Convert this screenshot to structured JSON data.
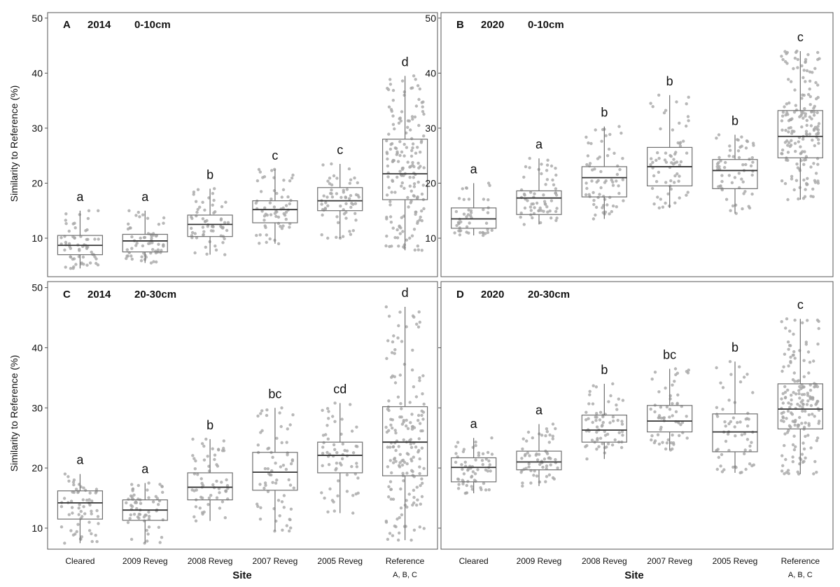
{
  "figure": {
    "ylabel": "Similarity to Reference (%)",
    "xlabel": "Site",
    "reference_note": "A, B, C"
  },
  "colors": {
    "axis": "#555555",
    "box": "#6f6f6f",
    "point": "#a6a6a6",
    "text": "#111111"
  },
  "chart_data": [
    {
      "type": "box",
      "panel": "A",
      "year": "2014",
      "depth": "0-10cm",
      "ylim": [
        3,
        51
      ],
      "yticks": [
        10,
        20,
        30,
        40,
        50
      ],
      "categories": [
        "Cleared",
        "2009 Reveg",
        "2008 Reveg",
        "2007 Reveg",
        "2005 Reveg",
        "Reference"
      ],
      "boxes": [
        {
          "min": 4.5,
          "q1": 7.0,
          "median": 8.7,
          "q3": 10.5,
          "max": 15.0,
          "n": 60,
          "letter": "a"
        },
        {
          "min": 5.5,
          "q1": 7.5,
          "median": 9.5,
          "q3": 10.7,
          "max": 15.0,
          "n": 60,
          "letter": "a"
        },
        {
          "min": 7.0,
          "q1": 10.3,
          "median": 12.5,
          "q3": 14.2,
          "max": 19.0,
          "n": 60,
          "letter": "b"
        },
        {
          "min": 9.0,
          "q1": 12.8,
          "median": 15.2,
          "q3": 16.8,
          "max": 22.5,
          "n": 60,
          "letter": "c"
        },
        {
          "min": 10.0,
          "q1": 15.0,
          "median": 16.8,
          "q3": 19.2,
          "max": 23.5,
          "n": 60,
          "letter": "c"
        },
        {
          "min": 7.8,
          "q1": 17.0,
          "median": 21.7,
          "q3": 28.0,
          "max": 39.5,
          "n": 170,
          "letter": "d"
        }
      ]
    },
    {
      "type": "box",
      "panel": "B",
      "year": "2020",
      "depth": "0-10cm",
      "ylim": [
        3,
        51
      ],
      "yticks": [
        10,
        20,
        30,
        40,
        50
      ],
      "categories": [
        "Cleared",
        "2009 Reveg",
        "2008 Reveg",
        "2007 Reveg",
        "2005 Reveg",
        "Reference"
      ],
      "boxes": [
        {
          "min": 10.5,
          "q1": 11.8,
          "median": 13.5,
          "q3": 15.5,
          "max": 20.0,
          "n": 45,
          "letter": "a"
        },
        {
          "min": 12.5,
          "q1": 14.3,
          "median": 17.3,
          "q3": 18.6,
          "max": 24.5,
          "n": 60,
          "letter": "a"
        },
        {
          "min": 13.5,
          "q1": 17.5,
          "median": 21.0,
          "q3": 23.0,
          "max": 30.3,
          "n": 65,
          "letter": "b"
        },
        {
          "min": 15.5,
          "q1": 19.5,
          "median": 23.0,
          "q3": 26.5,
          "max": 36.0,
          "n": 65,
          "letter": "b"
        },
        {
          "min": 14.5,
          "q1": 19.0,
          "median": 22.3,
          "q3": 24.3,
          "max": 28.8,
          "n": 60,
          "letter": "b"
        },
        {
          "min": 17.0,
          "q1": 24.6,
          "median": 28.5,
          "q3": 33.2,
          "max": 44.0,
          "n": 170,
          "letter": "c"
        }
      ]
    },
    {
      "type": "box",
      "panel": "C",
      "year": "2014",
      "depth": "20-30cm",
      "ylim": [
        6.5,
        51
      ],
      "yticks": [
        10,
        20,
        30,
        40,
        50
      ],
      "categories": [
        "Cleared",
        "2009 Reveg",
        "2008 Reveg",
        "2007 Reveg",
        "2005 Reveg",
        "Reference"
      ],
      "boxes": [
        {
          "min": 7.5,
          "q1": 11.5,
          "median": 14.2,
          "q3": 16.2,
          "max": 19.0,
          "n": 60,
          "letter": "a"
        },
        {
          "min": 7.5,
          "q1": 11.3,
          "median": 13.0,
          "q3": 14.7,
          "max": 17.5,
          "n": 60,
          "letter": "a"
        },
        {
          "min": 11.2,
          "q1": 14.7,
          "median": 16.8,
          "q3": 19.2,
          "max": 24.8,
          "n": 60,
          "letter": "b"
        },
        {
          "min": 9.5,
          "q1": 16.3,
          "median": 19.3,
          "q3": 22.6,
          "max": 30.0,
          "n": 65,
          "letter": "bc"
        },
        {
          "min": 12.5,
          "q1": 19.2,
          "median": 22.1,
          "q3": 24.3,
          "max": 30.8,
          "n": 60,
          "letter": "cd"
        },
        {
          "min": 8.0,
          "q1": 18.7,
          "median": 24.3,
          "q3": 30.2,
          "max": 46.8,
          "n": 170,
          "letter": "d"
        }
      ]
    },
    {
      "type": "box",
      "panel": "D",
      "year": "2020",
      "depth": "20-30cm",
      "ylim": [
        6.5,
        51
      ],
      "yticks": [
        10,
        20,
        30,
        40,
        50
      ],
      "show_tick_labels": false,
      "categories": [
        "Cleared",
        "2009 Reveg",
        "2008 Reveg",
        "2007 Reveg",
        "2005 Reveg",
        "Reference"
      ],
      "boxes": [
        {
          "min": 15.8,
          "q1": 17.7,
          "median": 20.1,
          "q3": 21.7,
          "max": 25.0,
          "n": 60,
          "letter": "a"
        },
        {
          "min": 17.0,
          "q1": 19.7,
          "median": 21.0,
          "q3": 22.8,
          "max": 27.3,
          "n": 60,
          "letter": "a"
        },
        {
          "min": 21.5,
          "q1": 24.3,
          "median": 26.3,
          "q3": 28.8,
          "max": 34.0,
          "n": 65,
          "letter": "b"
        },
        {
          "min": 23.0,
          "q1": 26.0,
          "median": 27.8,
          "q3": 30.4,
          "max": 36.5,
          "n": 60,
          "letter": "bc"
        },
        {
          "min": 19.2,
          "q1": 22.7,
          "median": 26.0,
          "q3": 29.0,
          "max": 37.7,
          "n": 60,
          "letter": "b"
        },
        {
          "min": 19.0,
          "q1": 26.5,
          "median": 29.8,
          "q3": 34.0,
          "max": 44.8,
          "n": 170,
          "letter": "c"
        }
      ]
    }
  ]
}
